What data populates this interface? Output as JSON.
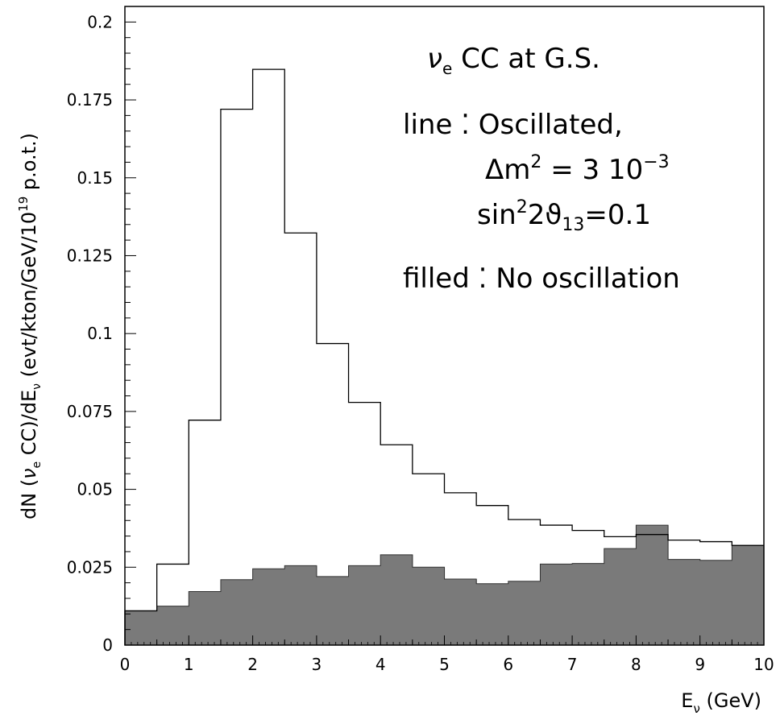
{
  "chart_data": {
    "type": "bar",
    "xlabel": "E_ν (GeV)",
    "ylabel": "dN (ν_e CC)/dE_ν (evt/kton/GeV/10^19 p.o.t.)",
    "xlim": [
      0,
      10
    ],
    "ylim": [
      0,
      0.205
    ],
    "bin_width": 0.5,
    "bin_edges": [
      0,
      0.5,
      1,
      1.5,
      2,
      2.5,
      3,
      3.5,
      4,
      4.5,
      5,
      5.5,
      6,
      6.5,
      7,
      7.5,
      8,
      8.5,
      9,
      9.5,
      10
    ],
    "x_ticks": [
      "0",
      "1",
      "2",
      "3",
      "4",
      "5",
      "6",
      "7",
      "8",
      "9",
      "10"
    ],
    "y_ticks": [
      "0",
      "0.025",
      "0.05",
      "0.075",
      "0.1",
      "0.125",
      "0.15",
      "0.175",
      "0.2"
    ],
    "grid": false,
    "series": [
      {
        "name": "No oscillation",
        "style": "filled",
        "color": "#7a7a7a",
        "values": [
          0.011,
          0.0125,
          0.0172,
          0.021,
          0.0245,
          0.0255,
          0.022,
          0.0255,
          0.029,
          0.025,
          0.0212,
          0.0197,
          0.0205,
          0.026,
          0.0262,
          0.031,
          0.0385,
          0.0275,
          0.0272,
          0.032
        ]
      },
      {
        "name": "Oscillated",
        "style": "line",
        "color": "#000000",
        "values": [
          0.011,
          0.026,
          0.0722,
          0.172,
          0.1848,
          0.1323,
          0.0968,
          0.0779,
          0.0643,
          0.055,
          0.0489,
          0.0448,
          0.0403,
          0.0385,
          0.0368,
          0.0348,
          0.0355,
          0.0337,
          0.0332,
          0.032
        ]
      }
    ],
    "annotations": {
      "title": "ν_e CC at G.S.",
      "line_label": "line",
      "line_desc": "Oscillated,",
      "dm2_text": "Δm² = 3 10⁻³",
      "sin_text": "sin²2ϑ₁₃=0.1",
      "filled_label": "filled",
      "filled_desc": "No oscillation"
    }
  }
}
